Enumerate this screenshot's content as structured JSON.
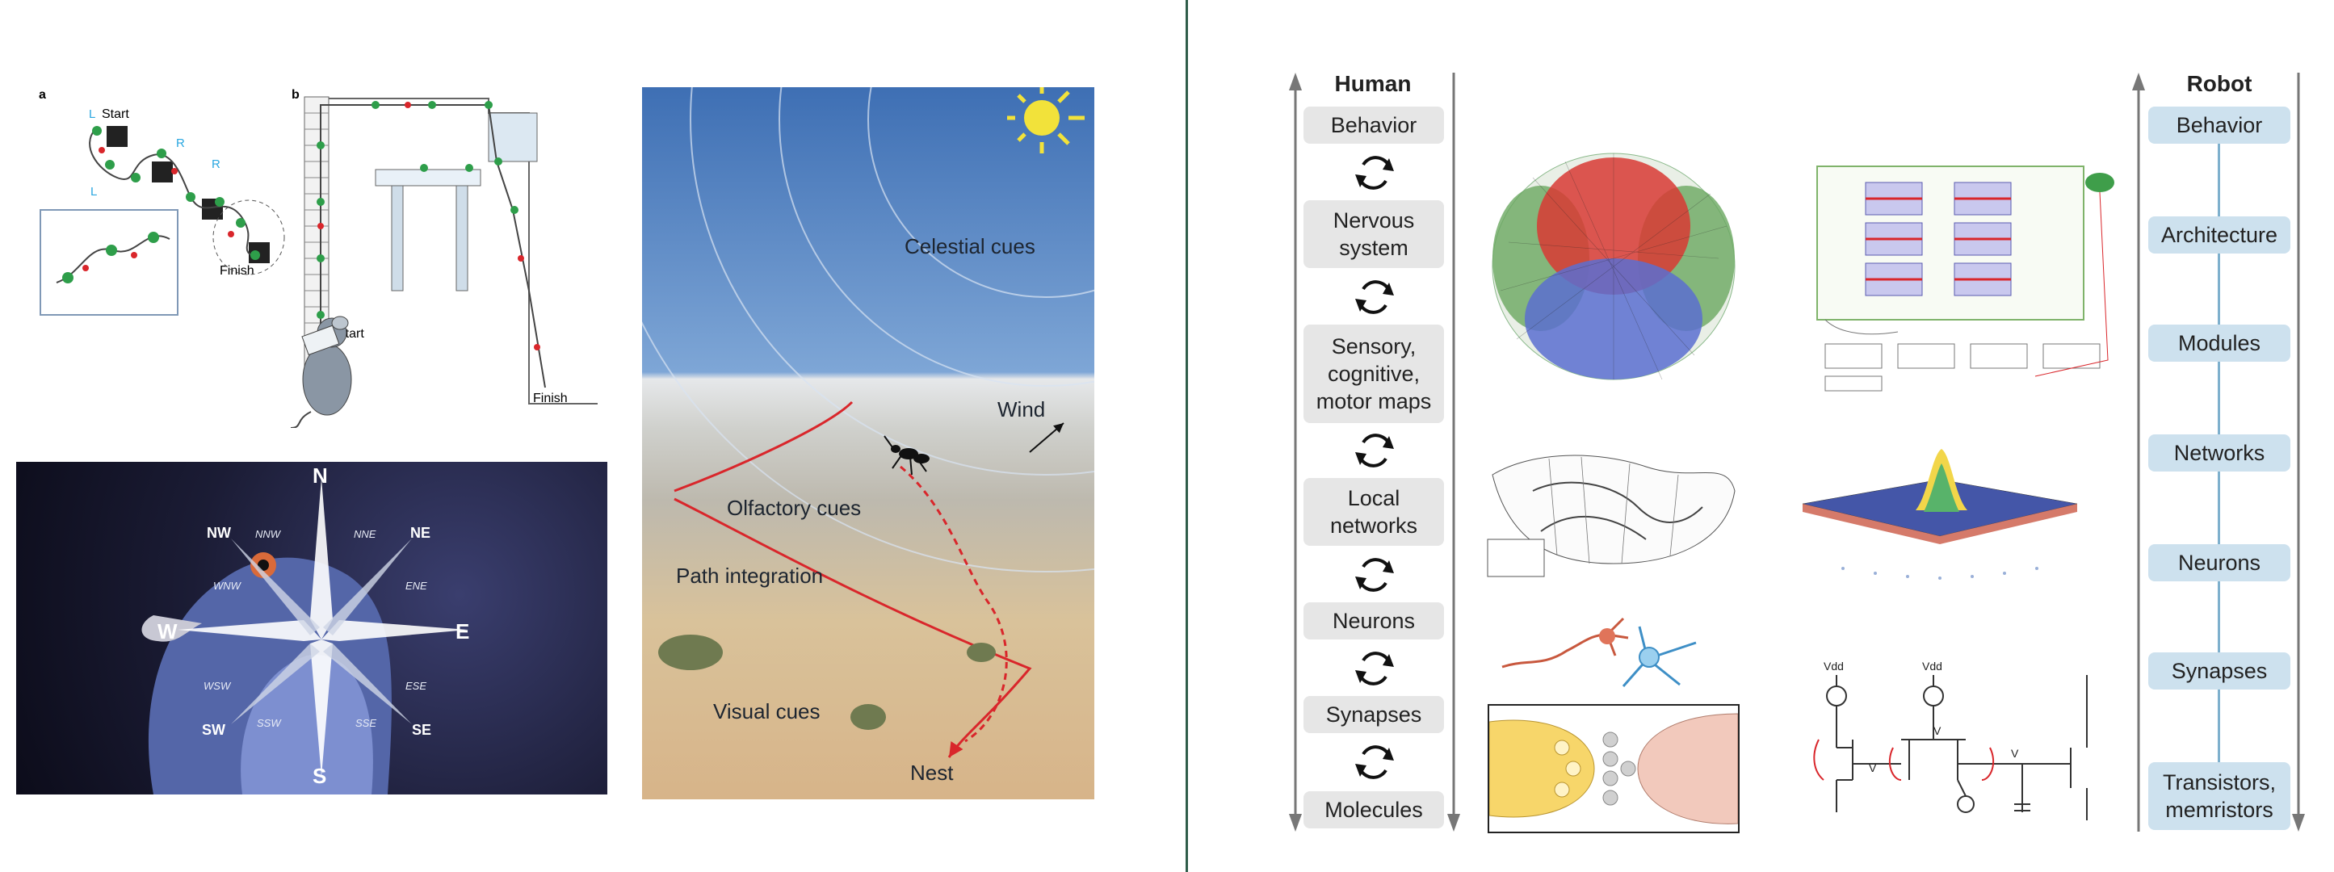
{
  "panel_a": {
    "label": "a",
    "start": "Start",
    "finish": "Finish",
    "turn_l": "L",
    "turn_r": "R"
  },
  "panel_b": {
    "label": "b",
    "start": "Start",
    "finish": "Finish"
  },
  "compass": {
    "n": "N",
    "s": "S",
    "e": "E",
    "w": "W",
    "ne": "NE",
    "nw": "NW",
    "se": "SE",
    "sw": "SW",
    "nne": "NNE",
    "nnw": "NNW",
    "ene": "ENE",
    "wnw": "WNW",
    "ese": "ESE",
    "wsw": "WSW",
    "sse": "SSE",
    "ssw": "SSW"
  },
  "desert": {
    "celestial": "Celestial cues",
    "wind": "Wind",
    "olfactory": "Olfactory cues",
    "path": "Path integration",
    "visual": "Visual cues",
    "nest": "Nest"
  },
  "human": {
    "title": "Human",
    "levels": [
      "Behavior",
      "Nervous system",
      "Sensory, cognitive, motor maps",
      "Local networks",
      "Neurons",
      "Synapses",
      "Molecules"
    ]
  },
  "robot": {
    "title": "Robot",
    "levels": [
      "Behavior",
      "Architecture",
      "Modules",
      "Networks",
      "Neurons",
      "Synapses",
      "Transistors, memristors"
    ]
  },
  "circuit": {
    "vdd": "Vdd",
    "vg": "V",
    "vs": "V",
    "vc": "V"
  },
  "colors": {
    "divider": "#2f5d4a",
    "human_pill": "#e6e6e6",
    "robot_pill": "#cde1ee",
    "path_red": "#d9262b",
    "path_green": "#2e9e4a",
    "turn_blue": "#2aa7e0"
  }
}
